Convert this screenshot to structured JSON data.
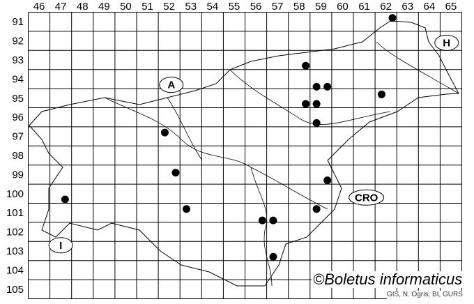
{
  "map": {
    "column_labels": [
      "46",
      "47",
      "48",
      "49",
      "50",
      "51",
      "52",
      "53",
      "54",
      "55",
      "56",
      "57",
      "58",
      "59",
      "60",
      "61",
      "62",
      "63",
      "64",
      "65"
    ],
    "row_labels": [
      "91",
      "92",
      "93",
      "94",
      "95",
      "96",
      "97",
      "98",
      "99",
      "100",
      "101",
      "102",
      "103",
      "104",
      "105"
    ],
    "region_labels": [
      {
        "text": "A",
        "x": 52.1,
        "y": 94.3
      },
      {
        "text": "H",
        "x": 64.8,
        "y": 92.1
      },
      {
        "text": "CRO",
        "x": 61.1,
        "y": 100.2
      },
      {
        "text": "I",
        "x": 47.0,
        "y": 102.7
      }
    ],
    "occurrences": [
      {
        "x": 62.3,
        "y": 90.8
      },
      {
        "x": 58.3,
        "y": 93.3
      },
      {
        "x": 58.8,
        "y": 94.4
      },
      {
        "x": 59.3,
        "y": 94.4
      },
      {
        "x": 61.8,
        "y": 94.8
      },
      {
        "x": 58.3,
        "y": 95.3
      },
      {
        "x": 58.8,
        "y": 95.3
      },
      {
        "x": 58.8,
        "y": 96.3
      },
      {
        "x": 51.8,
        "y": 96.8
      },
      {
        "x": 52.3,
        "y": 98.9
      },
      {
        "x": 59.3,
        "y": 99.3
      },
      {
        "x": 47.2,
        "y": 100.3
      },
      {
        "x": 52.8,
        "y": 100.8
      },
      {
        "x": 58.8,
        "y": 100.8
      },
      {
        "x": 56.3,
        "y": 101.4
      },
      {
        "x": 56.8,
        "y": 101.4
      },
      {
        "x": 56.8,
        "y": 103.3
      }
    ],
    "dot_color": "#000000"
  },
  "copyright": "©Boletus informaticus",
  "credit": "GIS, N. Ogris, BI, GURS"
}
